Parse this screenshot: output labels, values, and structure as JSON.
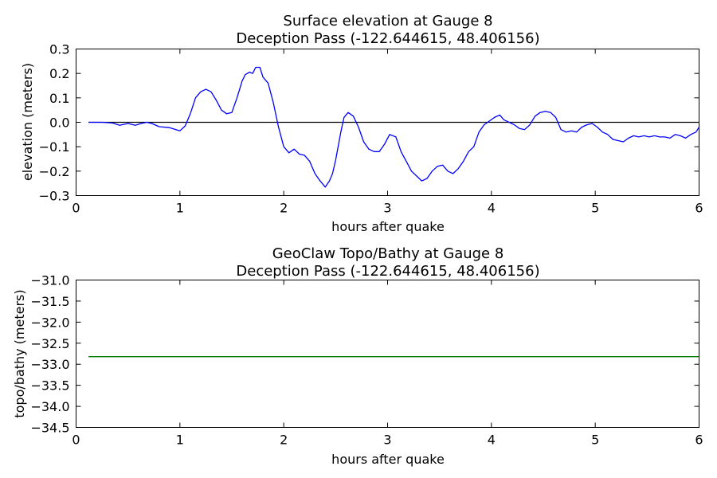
{
  "chart_data": [
    {
      "type": "line",
      "title": "Surface elevation at Gauge 8",
      "subtitle": "Deception Pass  (-122.644615, 48.406156)",
      "xlabel": "hours after quake",
      "ylabel": "elevation (meters)",
      "xlim": [
        0,
        6
      ],
      "ylim": [
        -0.3,
        0.3
      ],
      "xticks": [
        "0",
        "1",
        "2",
        "3",
        "4",
        "5",
        "6"
      ],
      "yticks": [
        "0.3",
        "0.2",
        "0.1",
        "0.0",
        "−0.1",
        "−0.2",
        "−0.3"
      ],
      "ytick_values": [
        0.3,
        0.2,
        0.1,
        0.0,
        -0.1,
        -0.2,
        -0.3
      ],
      "grid": false,
      "reference_line": {
        "y": 0.0,
        "x_range": [
          0.12,
          6.0
        ],
        "color": "#000000"
      },
      "series": [
        {
          "color": "#0000ff",
          "x": [
            0.12,
            0.25,
            0.35,
            0.42,
            0.5,
            0.57,
            0.62,
            0.68,
            0.73,
            0.8,
            0.9,
            1.0,
            1.05,
            1.1,
            1.15,
            1.2,
            1.25,
            1.3,
            1.35,
            1.4,
            1.45,
            1.5,
            1.55,
            1.6,
            1.63,
            1.67,
            1.7,
            1.73,
            1.77,
            1.8,
            1.85,
            1.9,
            1.95,
            2.0,
            2.05,
            2.1,
            2.15,
            2.2,
            2.25,
            2.3,
            2.35,
            2.4,
            2.44,
            2.47,
            2.5,
            2.55,
            2.58,
            2.62,
            2.67,
            2.72,
            2.77,
            2.82,
            2.87,
            2.92,
            2.97,
            3.02,
            3.08,
            3.13,
            3.18,
            3.23,
            3.28,
            3.33,
            3.38,
            3.43,
            3.48,
            3.53,
            3.58,
            3.63,
            3.68,
            3.73,
            3.78,
            3.83,
            3.88,
            3.93,
            3.98,
            4.03,
            4.08,
            4.12,
            4.17,
            4.22,
            4.27,
            4.32,
            4.37,
            4.42,
            4.47,
            4.52,
            4.57,
            4.62,
            4.67,
            4.72,
            4.77,
            4.82,
            4.87,
            4.92,
            4.97,
            5.02,
            5.07,
            5.12,
            5.17,
            5.22,
            5.27,
            5.32,
            5.37,
            5.42,
            5.47,
            5.52,
            5.57,
            5.62,
            5.67,
            5.72,
            5.77,
            5.82,
            5.87,
            5.92,
            5.97,
            6.0
          ],
          "y": [
            0.0,
            0.0,
            -0.003,
            -0.012,
            -0.005,
            -0.012,
            -0.006,
            0.0,
            -0.005,
            -0.018,
            -0.022,
            -0.035,
            -0.015,
            0.035,
            0.1,
            0.125,
            0.135,
            0.125,
            0.09,
            0.05,
            0.035,
            0.04,
            0.1,
            0.17,
            0.195,
            0.205,
            0.2,
            0.225,
            0.225,
            0.185,
            0.16,
            0.08,
            -0.02,
            -0.1,
            -0.125,
            -0.11,
            -0.13,
            -0.135,
            -0.16,
            -0.21,
            -0.24,
            -0.265,
            -0.24,
            -0.21,
            -0.155,
            -0.04,
            0.02,
            0.04,
            0.025,
            -0.02,
            -0.08,
            -0.11,
            -0.12,
            -0.12,
            -0.09,
            -0.05,
            -0.06,
            -0.12,
            -0.16,
            -0.2,
            -0.22,
            -0.24,
            -0.23,
            -0.2,
            -0.18,
            -0.175,
            -0.2,
            -0.21,
            -0.19,
            -0.16,
            -0.12,
            -0.1,
            -0.04,
            -0.01,
            0.005,
            0.02,
            0.03,
            0.01,
            0.0,
            -0.01,
            -0.025,
            -0.03,
            -0.01,
            0.025,
            0.04,
            0.045,
            0.04,
            0.02,
            -0.03,
            -0.04,
            -0.035,
            -0.04,
            -0.02,
            -0.01,
            -0.005,
            -0.02,
            -0.04,
            -0.05,
            -0.07,
            -0.075,
            -0.08,
            -0.065,
            -0.055,
            -0.06,
            -0.055,
            -0.06,
            -0.055,
            -0.06,
            -0.06,
            -0.065,
            -0.05,
            -0.055,
            -0.065,
            -0.05,
            -0.04,
            -0.02
          ]
        }
      ]
    },
    {
      "type": "line",
      "title": "GeoClaw Topo/Bathy at Gauge 8",
      "subtitle": "Deception Pass  (-122.644615, 48.406156)",
      "xlabel": "hours after quake",
      "ylabel": "topo/bathy (meters)",
      "xlim": [
        0,
        6
      ],
      "ylim": [
        -34.5,
        -31.0
      ],
      "xticks": [
        "0",
        "1",
        "2",
        "3",
        "4",
        "5",
        "6"
      ],
      "yticks": [
        "−31.0",
        "−31.5",
        "−32.0",
        "−32.5",
        "−33.0",
        "−33.5",
        "−34.0",
        "−34.5"
      ],
      "ytick_values": [
        -31.0,
        -31.5,
        -32.0,
        -32.5,
        -33.0,
        -33.5,
        -34.0,
        -34.5
      ],
      "grid": false,
      "series": [
        {
          "color": "#007f00",
          "x": [
            0.12,
            6.0
          ],
          "y": [
            -32.82,
            -32.82
          ]
        }
      ]
    }
  ]
}
